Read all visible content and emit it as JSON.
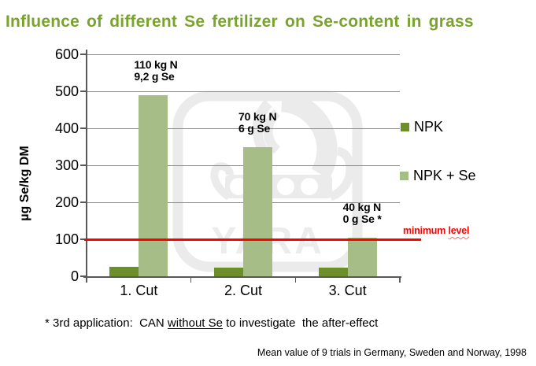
{
  "title": {
    "text": "Influence of different Se fertilizer on Se-content in grass",
    "color": "#79a42c"
  },
  "chart_data": {
    "type": "bar",
    "title": "Influence of different Se fertilizer on Se-content in grass",
    "categories": [
      "1. Cut",
      "2. Cut",
      "3. Cut"
    ],
    "series": [
      {
        "name": "NPK",
        "color": "#6d8f2a",
        "values": [
          25,
          23,
          23
        ]
      },
      {
        "name": "NPK + Se",
        "color": "#a6bd87",
        "values": [
          490,
          350,
          105
        ]
      }
    ],
    "ylabel": "µg Se/kg DM",
    "xlabel": "",
    "ylim": [
      0,
      600
    ],
    "yticks": [
      0,
      100,
      200,
      300,
      400,
      500,
      600
    ],
    "grid": true,
    "legend_position": "right",
    "reference_line": {
      "value": 100,
      "label": "minimum level",
      "color": "#ff0000"
    },
    "bar_annotations": [
      {
        "lines": [
          "110 kg N",
          "9,2 g Se"
        ]
      },
      {
        "lines": [
          "70 kg N",
          "6 g Se"
        ]
      },
      {
        "lines": [
          "40 kg N",
          "0 g Se *"
        ]
      }
    ]
  },
  "legend": {
    "items": [
      {
        "label": "NPK",
        "color": "#6d8f2a"
      },
      {
        "label": "NPK + Se",
        "color": "#a6bd87"
      }
    ]
  },
  "reference_label": {
    "normal": "minimum",
    "wavy_underlined": "level"
  },
  "footnote": {
    "prefix": "* 3rd application:  CAN ",
    "underlined": "without Se",
    "suffix": " to investigate  the after-effect"
  },
  "source": "Mean value of 9 trials in Germany, Sweden and Norway, 1998",
  "watermark": {
    "text": "YARA"
  }
}
